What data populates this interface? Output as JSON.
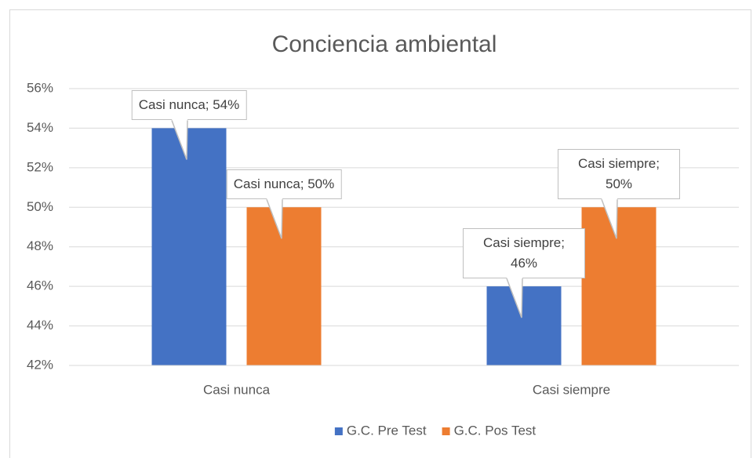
{
  "chart_data": {
    "type": "bar",
    "title": "Conciencia ambiental",
    "categories": [
      "Casi nunca",
      "Casi siempre"
    ],
    "series": [
      {
        "name": "G.C. Pre Test",
        "color": "#4472c4",
        "values": [
          54,
          46
        ],
        "value_labels": [
          "Casi nunca; 54%",
          "Casi siempre; 46%"
        ]
      },
      {
        "name": "G.C. Pos Test",
        "color": "#ed7d31",
        "values": [
          50,
          50
        ],
        "value_labels": [
          "Casi nunca; 50%",
          "Casi siempre; 50%"
        ]
      }
    ],
    "ylim": [
      42,
      56
    ],
    "yticks": [
      {
        "value": 42,
        "label": "42%"
      },
      {
        "value": 44,
        "label": "44%"
      },
      {
        "value": 46,
        "label": "46%"
      },
      {
        "value": 48,
        "label": "48%"
      },
      {
        "value": 50,
        "label": "50%"
      },
      {
        "value": 52,
        "label": "52%"
      },
      {
        "value": 54,
        "label": "54%"
      },
      {
        "value": 56,
        "label": "56%"
      }
    ],
    "grid": true,
    "legend": "bottom"
  }
}
